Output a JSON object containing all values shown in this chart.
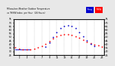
{
  "title": "Milwaukee Weather Outdoor Temperature vs THSW Index per Hour (24 Hours)",
  "background_color": "#e8e8e8",
  "plot_bg": "#ffffff",
  "legend_blue_label": "Temp",
  "legend_red_label": "THSW",
  "hours": [
    0,
    1,
    2,
    3,
    4,
    5,
    6,
    7,
    8,
    9,
    10,
    11,
    12,
    13,
    14,
    15,
    16,
    17,
    18,
    19,
    20,
    21,
    22,
    23
  ],
  "temp_red": [
    35,
    34,
    33,
    33,
    33,
    34,
    35,
    37,
    40,
    44,
    48,
    51,
    53,
    54,
    54,
    53,
    51,
    49,
    46,
    43,
    41,
    39,
    38,
    36
  ],
  "thsw_blue": [
    null,
    null,
    null,
    null,
    null,
    null,
    null,
    null,
    36,
    42,
    50,
    57,
    62,
    65,
    66,
    65,
    62,
    57,
    51,
    45,
    40,
    37,
    null,
    null
  ],
  "flat_line_x_start": 0,
  "flat_line_x_end": 4,
  "flat_line_y": 33,
  "ylim_min": 25,
  "ylim_max": 75,
  "xlim_min": -0.5,
  "xlim_max": 23.5,
  "xticks": [
    1,
    3,
    5,
    7,
    9,
    11,
    13,
    15,
    17,
    19,
    21,
    23
  ],
  "ytick_positions": [
    25,
    30,
    35,
    40,
    45,
    50,
    55,
    60,
    65,
    70,
    75
  ],
  "ytick_labels": [
    "25",
    "30",
    "35",
    "40",
    "45",
    "50",
    "55",
    "60",
    "65",
    "70",
    "75"
  ],
  "temp_color": "#ff0000",
  "thsw_color": "#0000cc",
  "dot_size": 2,
  "grid_color": "#bbbbbb",
  "grid_style": "--",
  "grid_linewidth": 0.3,
  "legend_blue_color": "#0000cc",
  "legend_red_color": "#ff0000"
}
